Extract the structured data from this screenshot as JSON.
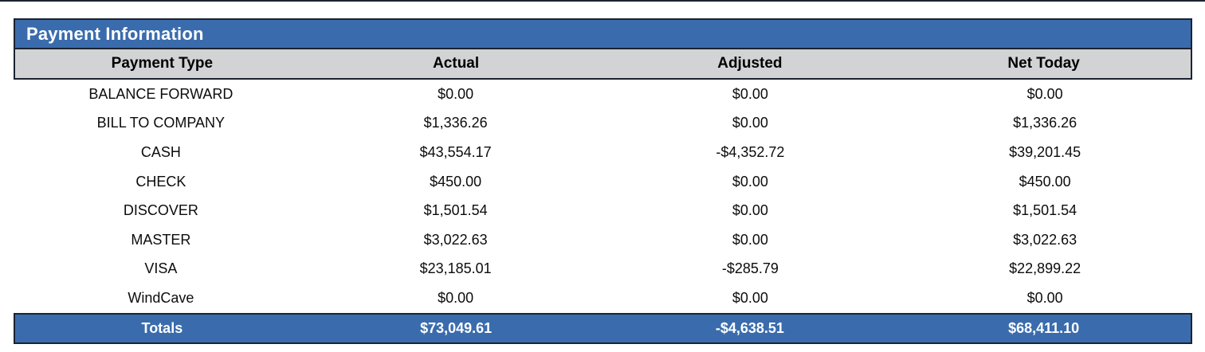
{
  "panel": {
    "title": "Payment Information"
  },
  "colors": {
    "accent_blue": "#3a6cad",
    "header_gray": "#d2d3d4",
    "border_dark": "#1b2330",
    "title_text": "#ffffff",
    "body_text": "#0c0c0c"
  },
  "table": {
    "columns": [
      "Payment Type",
      "Actual",
      "Adjusted",
      "Net Today"
    ],
    "rows": [
      [
        "BALANCE FORWARD",
        "$0.00",
        "$0.00",
        "$0.00"
      ],
      [
        "BILL TO COMPANY",
        "$1,336.26",
        "$0.00",
        "$1,336.26"
      ],
      [
        "CASH",
        "$43,554.17",
        "-$4,352.72",
        "$39,201.45"
      ],
      [
        "CHECK",
        "$450.00",
        "$0.00",
        "$450.00"
      ],
      [
        "DISCOVER",
        "$1,501.54",
        "$0.00",
        "$1,501.54"
      ],
      [
        "MASTER",
        "$3,022.63",
        "$0.00",
        "$3,022.63"
      ],
      [
        "VISA",
        "$23,185.01",
        "-$285.79",
        "$22,899.22"
      ],
      [
        "WindCave",
        "$0.00",
        "$0.00",
        "$0.00"
      ]
    ],
    "totals": {
      "label": "Totals",
      "actual": "$73,049.61",
      "adjusted": "-$4,638.51",
      "net_today": "$68,411.10"
    }
  }
}
